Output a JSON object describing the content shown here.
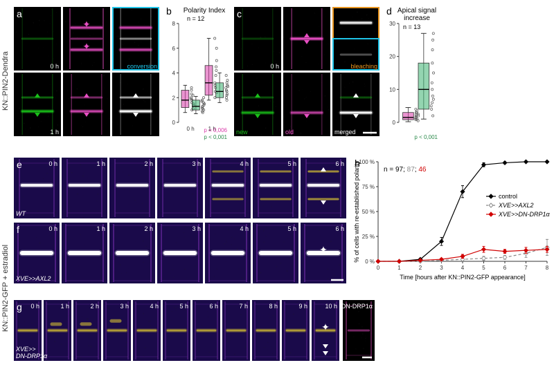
{
  "sideLabels": {
    "top": "KN::PIN2-Dendra",
    "bottom": "KN::PIN2-GFP + estradiol"
  },
  "panels": {
    "a": {
      "label": "a"
    },
    "b": {
      "label": "b",
      "title": "Polarity Index",
      "n": "n = 12",
      "ylim": [
        0,
        8
      ],
      "yticks": [
        0,
        2,
        4,
        6,
        8
      ],
      "xlabels": [
        "0 h",
        "1 h"
      ],
      "pMagenta": "p = 0,006",
      "pGreen": "p < 0,001",
      "series": [
        {
          "color": "#d93caa",
          "x": 0,
          "q1": 1.2,
          "med": 1.8,
          "q3": 2.6,
          "wLow": 0.8,
          "wHigh": 3.0,
          "points": [
            1.0,
            1.4,
            1.6,
            1.8,
            2.0,
            2.2,
            2.6,
            2.8,
            1.5,
            1.9,
            2.3,
            1.1
          ]
        },
        {
          "color": "#3cb371",
          "x": 1,
          "q1": 1.0,
          "med": 1.3,
          "q3": 1.8,
          "wLow": 0.7,
          "wHigh": 2.1,
          "points": [
            0.8,
            1.0,
            1.1,
            1.3,
            1.4,
            1.6,
            1.8,
            2.0,
            1.2,
            1.5,
            1.7,
            0.9
          ]
        },
        {
          "color": "#d93caa",
          "x": 2.2,
          "q1": 2.2,
          "med": 3.2,
          "q3": 4.6,
          "wLow": 1.8,
          "wHigh": 6.8,
          "points": [
            2.0,
            2.4,
            2.8,
            3.2,
            3.8,
            4.2,
            5.0,
            6.0,
            6.8,
            2.5,
            3.0,
            4.5
          ]
        },
        {
          "color": "#3cb371",
          "x": 3.2,
          "q1": 2.0,
          "med": 2.5,
          "q3": 3.2,
          "wLow": 1.6,
          "wHigh": 4.0,
          "points": [
            1.8,
            2.0,
            2.2,
            2.5,
            2.8,
            3.0,
            3.4,
            3.8,
            2.3,
            2.6,
            2.9,
            3.2
          ]
        }
      ]
    },
    "c": {
      "label": "c",
      "bleaching": "bleaching",
      "conversion": "conversion",
      "new": "new",
      "old": "old",
      "merged": "merged"
    },
    "d": {
      "label": "d",
      "title": "Apical signal increase",
      "n": "n = 13",
      "ylim": [
        0,
        30
      ],
      "yticks": [
        0,
        10,
        20,
        30
      ],
      "pGreen": "p < 0,001",
      "series": [
        {
          "color": "#d93caa",
          "x": 0,
          "q1": 0.8,
          "med": 1.5,
          "q3": 3.0,
          "wLow": 0.2,
          "wHigh": 4.5,
          "points": [
            0.5,
            1.0,
            1.5,
            2.0,
            2.5,
            3.0,
            3.5,
            4.0,
            1.2,
            1.8,
            2.3,
            2.8,
            0.8
          ]
        },
        {
          "color": "#3cb371",
          "x": 1,
          "q1": 4.0,
          "med": 10.0,
          "q3": 18.0,
          "wLow": 1.0,
          "wHigh": 27.0,
          "points": [
            2,
            4,
            6,
            8,
            10,
            12,
            15,
            18,
            22,
            25,
            27,
            5,
            7
          ]
        }
      ]
    },
    "e": {
      "label": "e",
      "strain": "WT",
      "times": [
        "0 h",
        "1 h",
        "2 h",
        "3 h",
        "4 h",
        "5 h",
        "6 h"
      ]
    },
    "f": {
      "label": "f",
      "strain": "XVE>>AXL2",
      "times": [
        "0 h",
        "1 h",
        "2 h",
        "3 h",
        "4 h",
        "5 h",
        "6 h"
      ]
    },
    "g": {
      "label": "g",
      "strain": "XVE>>\nDN-DRP1α",
      "extra": "DN-DRP1α",
      "times": [
        "0 h",
        "1 h",
        "2 h",
        "3 h",
        "4 h",
        "5 h",
        "6 h",
        "7 h",
        "8 h",
        "9 h",
        "10 h"
      ]
    },
    "h": {
      "label": "h",
      "n": "n = 97; 87; 46",
      "nColors": [
        "#000000",
        "#888888",
        "#d00000"
      ],
      "ylabel": "% of cells with re-established polarity",
      "xlabel": "Time [hours after KN::PIN2-GFP appearance]",
      "ylim": [
        0,
        100
      ],
      "yticks": [
        0,
        25,
        50,
        75,
        100
      ],
      "xlim": [
        0,
        8
      ],
      "xticks": [
        0,
        1,
        2,
        3,
        4,
        5,
        6,
        7,
        8
      ],
      "legend": [
        "control",
        "XVE>>AXL2",
        "XVE>>DN-DRP1α"
      ],
      "legendColors": [
        "#000000",
        "#888888",
        "#d00000"
      ],
      "series": [
        {
          "color": "#000000",
          "dash": "",
          "marker": "diamond",
          "points": [
            [
              0,
              0
            ],
            [
              1,
              0
            ],
            [
              2,
              2
            ],
            [
              3,
              20
            ],
            [
              4,
              70
            ],
            [
              5,
              97
            ],
            [
              6,
              99
            ],
            [
              7,
              100
            ],
            [
              8,
              100
            ]
          ],
          "err": [
            0,
            0,
            1,
            4,
            6,
            2,
            1,
            0,
            0
          ]
        },
        {
          "color": "#888888",
          "dash": "4,3",
          "marker": "diamond-open",
          "points": [
            [
              0,
              0
            ],
            [
              1,
              0
            ],
            [
              2,
              0
            ],
            [
              3,
              1
            ],
            [
              4,
              2
            ],
            [
              5,
              3
            ],
            [
              6,
              4
            ],
            [
              7,
              8
            ],
            [
              8,
              14
            ]
          ],
          "err": [
            0,
            0,
            0,
            1,
            1,
            2,
            2,
            4,
            8
          ]
        },
        {
          "color": "#d00000",
          "dash": "",
          "marker": "diamond",
          "points": [
            [
              0,
              0
            ],
            [
              1,
              0
            ],
            [
              2,
              1
            ],
            [
              3,
              2
            ],
            [
              4,
              5
            ],
            [
              5,
              12
            ],
            [
              6,
              10
            ],
            [
              7,
              11
            ],
            [
              8,
              12
            ]
          ],
          "err": [
            0,
            0,
            1,
            1,
            2,
            3,
            2,
            3,
            3
          ]
        }
      ]
    }
  },
  "colors": {
    "green": "#1abf1a",
    "magenta": "#e84fc3",
    "cyan": "#1fc4e8",
    "orange": "#e8951f",
    "fire_low": "#1a0a4a",
    "fire_mid": "#7a2fb0",
    "fire_high": "#f6e030"
  }
}
